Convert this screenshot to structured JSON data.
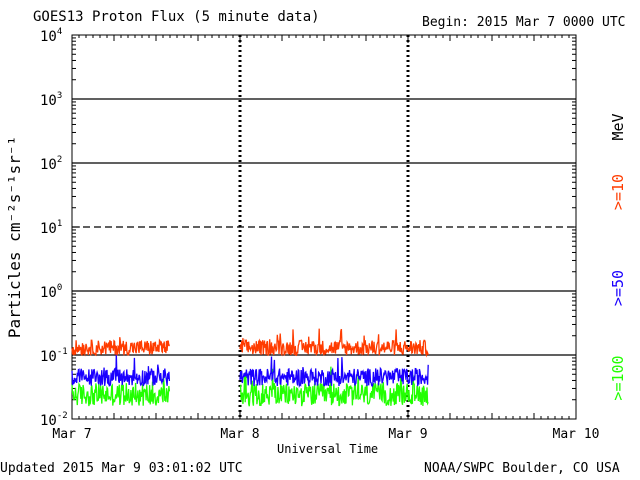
{
  "header": {
    "title": "GOES13 Proton Flux (5 minute data)",
    "begin": "Begin: 2015 Mar 7 0000 UTC"
  },
  "footer": {
    "updated": "Updated 2015 Mar  9 03:01:02 UTC",
    "credit": "NOAA/SWPC Boulder, CO USA"
  },
  "colors": {
    "ge10": "#ff3c00",
    "ge50": "#1a00ff",
    "ge100": "#22ff00"
  },
  "chart_data": {
    "type": "line",
    "title": "GOES13 Proton Flux (5 minute data)",
    "xlabel": "Universal Time",
    "ylabel": "Particles cm⁻²s⁻¹sr⁻¹",
    "yscale": "log",
    "ylim": [
      0.01,
      10000
    ],
    "xlim": [
      0,
      3
    ],
    "x_unit": "days since 2015 Mar 7 0000 UTC",
    "x_ticks": [
      {
        "value": 0,
        "label": "Mar 7"
      },
      {
        "value": 1,
        "label": "Mar 8"
      },
      {
        "value": 2,
        "label": "Mar 9"
      },
      {
        "value": 3,
        "label": "Mar 10"
      }
    ],
    "y_ticks": [
      {
        "value": 0.01,
        "base": "10",
        "exp": "-2"
      },
      {
        "value": 0.1,
        "base": "10",
        "exp": "-1"
      },
      {
        "value": 1,
        "base": "10",
        "exp": "0"
      },
      {
        "value": 10,
        "base": "10",
        "exp": "1"
      },
      {
        "value": 100,
        "base": "10",
        "exp": "2"
      },
      {
        "value": 1000,
        "base": "10",
        "exp": "3"
      },
      {
        "value": 10000,
        "base": "10",
        "exp": "4"
      }
    ],
    "hlines": [
      {
        "value": 0.1,
        "style": "solid"
      },
      {
        "value": 1,
        "style": "solid"
      },
      {
        "value": 10,
        "style": "dashed"
      },
      {
        "value": 100,
        "style": "solid"
      },
      {
        "value": 1000,
        "style": "solid"
      }
    ],
    "day_markers": [
      1,
      2
    ],
    "data_segments": [
      [
        0,
        0.58
      ],
      [
        1.0,
        2.12
      ]
    ],
    "legend_unit": "MeV",
    "series": [
      {
        "name": ">=10",
        "color": "#ff3c00",
        "typical": 0.13,
        "spread_decades": 0.12
      },
      {
        "name": ">=50",
        "color": "#1a00ff",
        "typical": 0.045,
        "spread_decades": 0.14
      },
      {
        "name": ">=100",
        "color": "#22ff00",
        "typical": 0.024,
        "spread_decades": 0.18
      }
    ]
  }
}
